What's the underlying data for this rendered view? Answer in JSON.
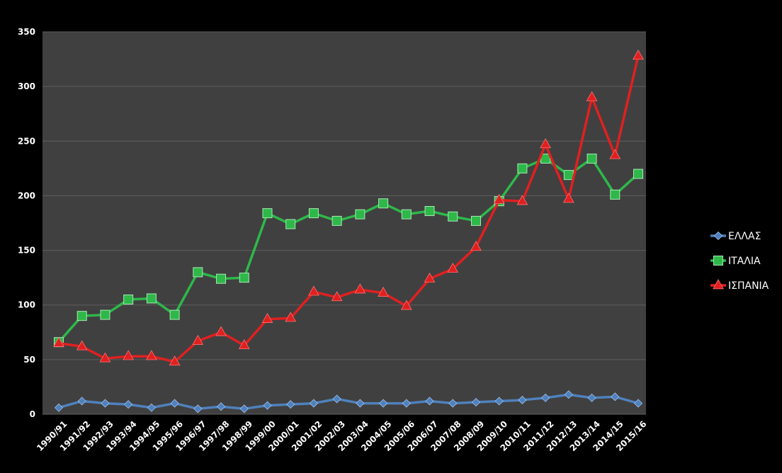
{
  "chart_data": {
    "type": "line",
    "title": "",
    "xlabel": "",
    "ylabel": "",
    "ylim": [
      0,
      350
    ],
    "yticks": [
      0,
      50,
      100,
      150,
      200,
      250,
      300,
      350
    ],
    "grid": true,
    "legend_position": "right",
    "categories": [
      "1990/91",
      "1991/92",
      "1992/93",
      "1993/94",
      "1994/95",
      "1995/96",
      "1996/97",
      "1997/98",
      "1998/99",
      "1999/00",
      "2000/01",
      "2001/02",
      "2002/03",
      "2003/04",
      "2004/05",
      "2005/06",
      "2006/07",
      "2007/08",
      "2008/09",
      "2009/10",
      "2010/11",
      "2011/12",
      "2012/13",
      "2013/14",
      "2014/15",
      "2015/16"
    ],
    "series": [
      {
        "name": "ΕΛΛΑΣ",
        "color": "#4f81bd",
        "marker": "diamond",
        "values": [
          6,
          12,
          10,
          9,
          6,
          10,
          5,
          7,
          5,
          8,
          9,
          10,
          14,
          10,
          10,
          10,
          12,
          10,
          11,
          12,
          13,
          15,
          18,
          15,
          16,
          10
        ]
      },
      {
        "name": "ΙΤΑΛΙΑ",
        "color": "#2eb84a",
        "marker": "square",
        "values": [
          66,
          90,
          91,
          105,
          106,
          91,
          130,
          124,
          125,
          184,
          174,
          184,
          177,
          183,
          193,
          183,
          186,
          181,
          177,
          195,
          225,
          234,
          219,
          234,
          201,
          220
        ]
      },
      {
        "name": "ΙΣΠΑΝΙΑ",
        "color": "#e02020",
        "marker": "triangle",
        "values": [
          65,
          62,
          51,
          53,
          53,
          48,
          67,
          75,
          63,
          87,
          88,
          112,
          107,
          114,
          111,
          99,
          124,
          133,
          153,
          196,
          195,
          247,
          197,
          290,
          237,
          328
        ]
      }
    ]
  },
  "colors": {
    "background": "#000000",
    "plot_area": "#404040",
    "gridline": "#5e5e5e",
    "text": "#ffffff"
  }
}
